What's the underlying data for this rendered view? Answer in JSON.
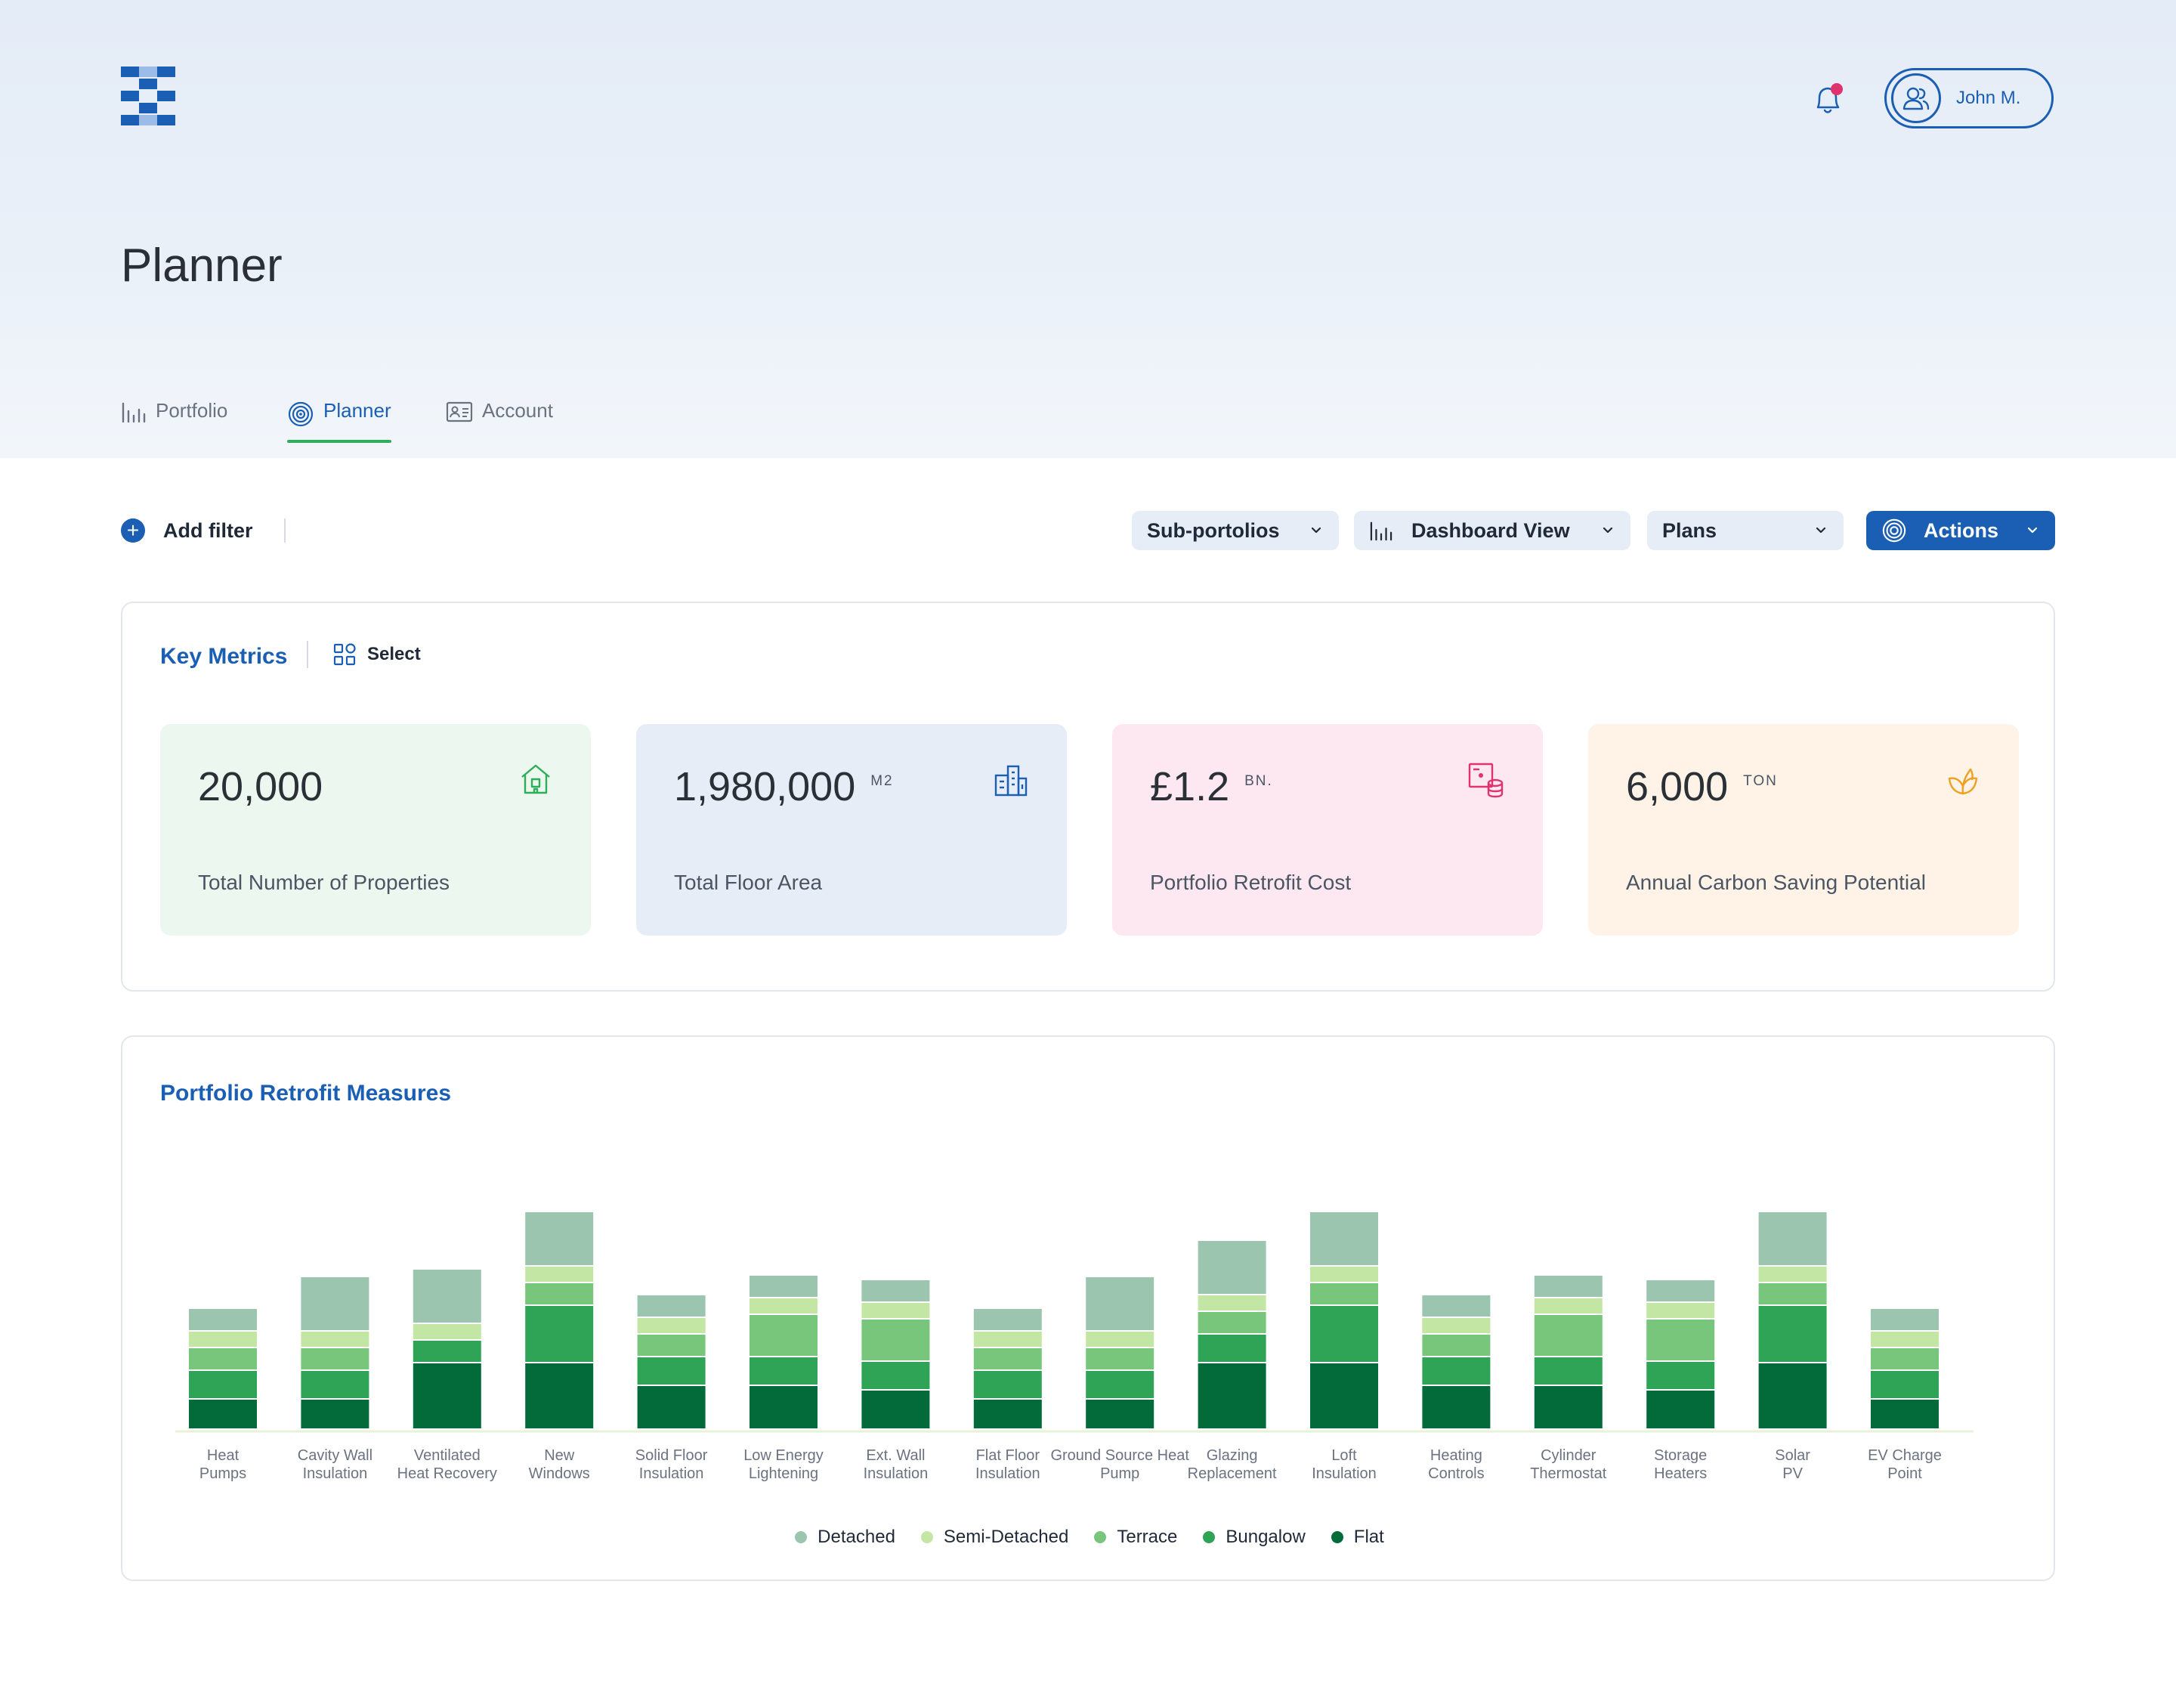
{
  "header": {
    "user_name": "John M.",
    "page_title": "Planner"
  },
  "tabs": [
    {
      "label": "Portfolio",
      "icon": "bar-chart-icon",
      "active": false
    },
    {
      "label": "Planner",
      "icon": "target-icon",
      "active": true
    },
    {
      "label": "Account",
      "icon": "id-card-icon",
      "active": false
    }
  ],
  "toolbar": {
    "add_filter": "Add filter",
    "sub_portfolios": "Sub-portolios",
    "dashboard_view": "Dashboard View",
    "plans": "Plans",
    "actions": "Actions"
  },
  "key_metrics": {
    "title": "Key Metrics",
    "select_label": "Select",
    "items": [
      {
        "value": "20,000",
        "unit": "",
        "label": "Total Number of Properties",
        "icon": "home-icon",
        "color": "#2fae5a",
        "bg": "#ecf7ef"
      },
      {
        "value": "1,980,000",
        "unit": "M2",
        "label": "Total Floor Area",
        "icon": "buildings-icon",
        "color": "#1a5fb4",
        "bg": "#e6edf7"
      },
      {
        "value": "£1.2",
        "unit": "BN.",
        "label": "Portfolio Retrofit Cost",
        "icon": "cost-icon",
        "color": "#e0336e",
        "bg": "#fde8f1"
      },
      {
        "value": "6,000",
        "unit": "TON",
        "label": "Annual Carbon Saving Potential",
        "icon": "leaf-icon",
        "color": "#f0a020",
        "bg": "#fef3e6"
      }
    ]
  },
  "colors": {
    "accent": "#1a5fb4",
    "notification": "#e0336e",
    "active_tab_underline": "#2fae5a"
  },
  "chart_data": {
    "type": "bar",
    "stacked": true,
    "title": "Portfolio Retrofit Measures",
    "xlabel": "",
    "ylabel": "",
    "grid": false,
    "legend_position": "bottom-center",
    "categories": [
      "Heat Pumps",
      "Cavity Wall Insulation",
      "Ventilated Heat Recovery",
      "New Windows",
      "Solid Floor Insulation",
      "Low Energy Lightening",
      "Ext. Wall Insulation",
      "Flat Floor Insulation",
      "Ground Source Heat Pump",
      "Glazing Replacement",
      "Loft Insulation",
      "Heating Controls",
      "Cylinder Thermostat",
      "Storage Heaters",
      "Solar PV",
      "EV Charge Point"
    ],
    "series": [
      {
        "name": "Flat",
        "color": "#036b3a",
        "values": [
          40,
          40,
          88,
          88,
          58,
          58,
          52,
          40,
          40,
          88,
          88,
          58,
          58,
          52,
          88,
          40
        ]
      },
      {
        "name": "Bungalow",
        "color": "#2fa356",
        "values": [
          38,
          38,
          30,
          76,
          38,
          38,
          38,
          38,
          38,
          38,
          76,
          38,
          38,
          38,
          76,
          38
        ]
      },
      {
        "name": "Terrace",
        "color": "#78c67c",
        "values": [
          30,
          30,
          0,
          30,
          30,
          56,
          56,
          30,
          30,
          30,
          30,
          30,
          56,
          56,
          30,
          30
        ]
      },
      {
        "name": "Semi-Detached",
        "color": "#c4e6a4",
        "values": [
          22,
          22,
          22,
          22,
          22,
          22,
          22,
          22,
          22,
          22,
          22,
          22,
          22,
          22,
          22,
          22
        ]
      },
      {
        "name": "Detached",
        "color": "#9cc5b0",
        "values": [
          30,
          72,
          72,
          72,
          30,
          30,
          30,
          30,
          72,
          72,
          72,
          30,
          30,
          30,
          72,
          30
        ]
      }
    ],
    "legend_order": [
      "Detached",
      "Semi-Detached",
      "Terrace",
      "Bungalow",
      "Flat"
    ]
  }
}
